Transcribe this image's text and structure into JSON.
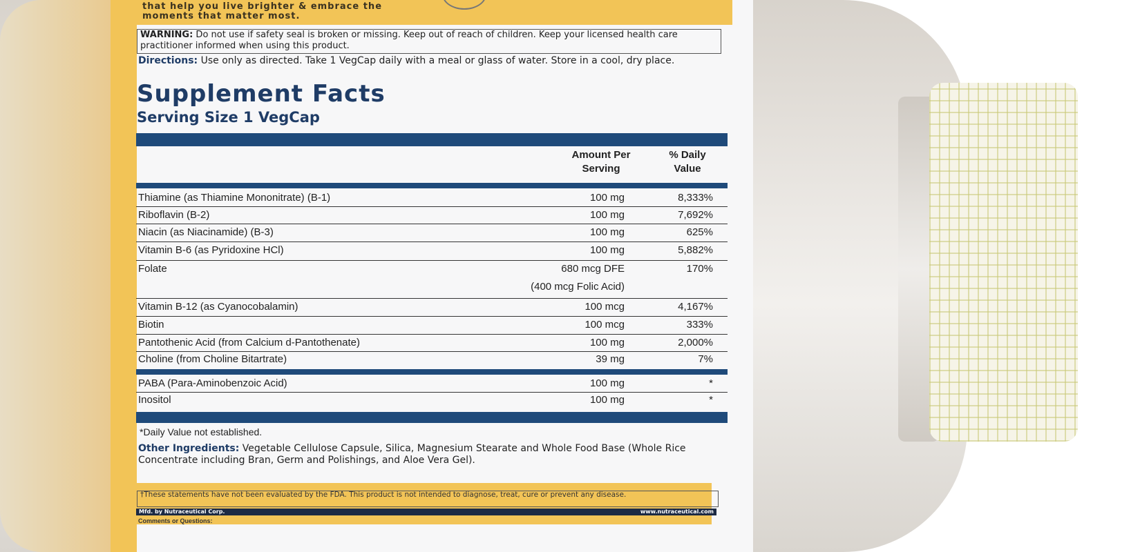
{
  "tagline": [
    "that help you live brighter & embrace the",
    "moments that matter most."
  ],
  "warning": {
    "label": "WARNING:",
    "text": " Do not use if safety seal is broken or missing. Keep out of reach of children. Keep your licensed health care practitioner informed when using this product."
  },
  "directions": {
    "label": "Directions:",
    "text": " Use only as directed. Take 1 VegCap daily with a meal or glass of water. Store in a cool, dry place."
  },
  "facts": {
    "title": "Supplement Facts",
    "serving": "Serving Size 1 VegCap",
    "col_amount": "Amount Per Serving",
    "col_dv": "% Daily Value",
    "rows": [
      {
        "name": "Thiamine (as Thiamine Mononitrate) (B-1)",
        "amount": "100 mg",
        "dv": "8,333%"
      },
      {
        "name": "Riboflavin (B-2)",
        "amount": "100 mg",
        "dv": "7,692%"
      },
      {
        "name": "Niacin (as Niacinamide) (B-3)",
        "amount": "100 mg",
        "dv": "625%"
      },
      {
        "name": "Vitamin B-6 (as Pyridoxine HCl)",
        "amount": "100 mg",
        "dv": "5,882%"
      },
      {
        "name": "Folate",
        "amount": "680 mcg DFE",
        "amount2": "(400 mcg Folic Acid)",
        "dv": "170%"
      },
      {
        "name": "Vitamin B-12 (as Cyanocobalamin)",
        "amount": "100 mcg",
        "dv": "4,167%"
      },
      {
        "name": "Biotin",
        "amount": "100 mcg",
        "dv": "333%"
      },
      {
        "name": "Pantothenic Acid (from Calcium d-Pantothenate)",
        "amount": "100 mg",
        "dv": "2,000%"
      },
      {
        "name": "Choline (from Choline Bitartrate)",
        "amount": "39 mg",
        "dv": "7%"
      }
    ],
    "rows2": [
      {
        "name": "PABA (Para-Aminobenzoic Acid)",
        "amount": "100 mg",
        "dv": "*"
      },
      {
        "name": "Inositol",
        "amount": "100 mg",
        "dv": "*"
      }
    ],
    "footnote": "*Daily Value not established."
  },
  "other": {
    "label": "Other Ingredients:",
    "text": " Vegetable Cellulose Capsule, Silica, Magnesium Stearate and Whole Food Base (Whole Rice Concentrate including Bran, Germ and Polishings, and Aloe Vera Gel)."
  },
  "fda": "†These statements have not been evaluated by the FDA. This product is not intended to diagnose, treat, cure or prevent any disease.",
  "mfd": "Mfd. by Nutraceutical Corp.",
  "website": "www.nutraceutical.com",
  "comments": "Comments or Questions:",
  "colors": {
    "navy": "#1f4a7a",
    "yellow": "#f2c457"
  }
}
